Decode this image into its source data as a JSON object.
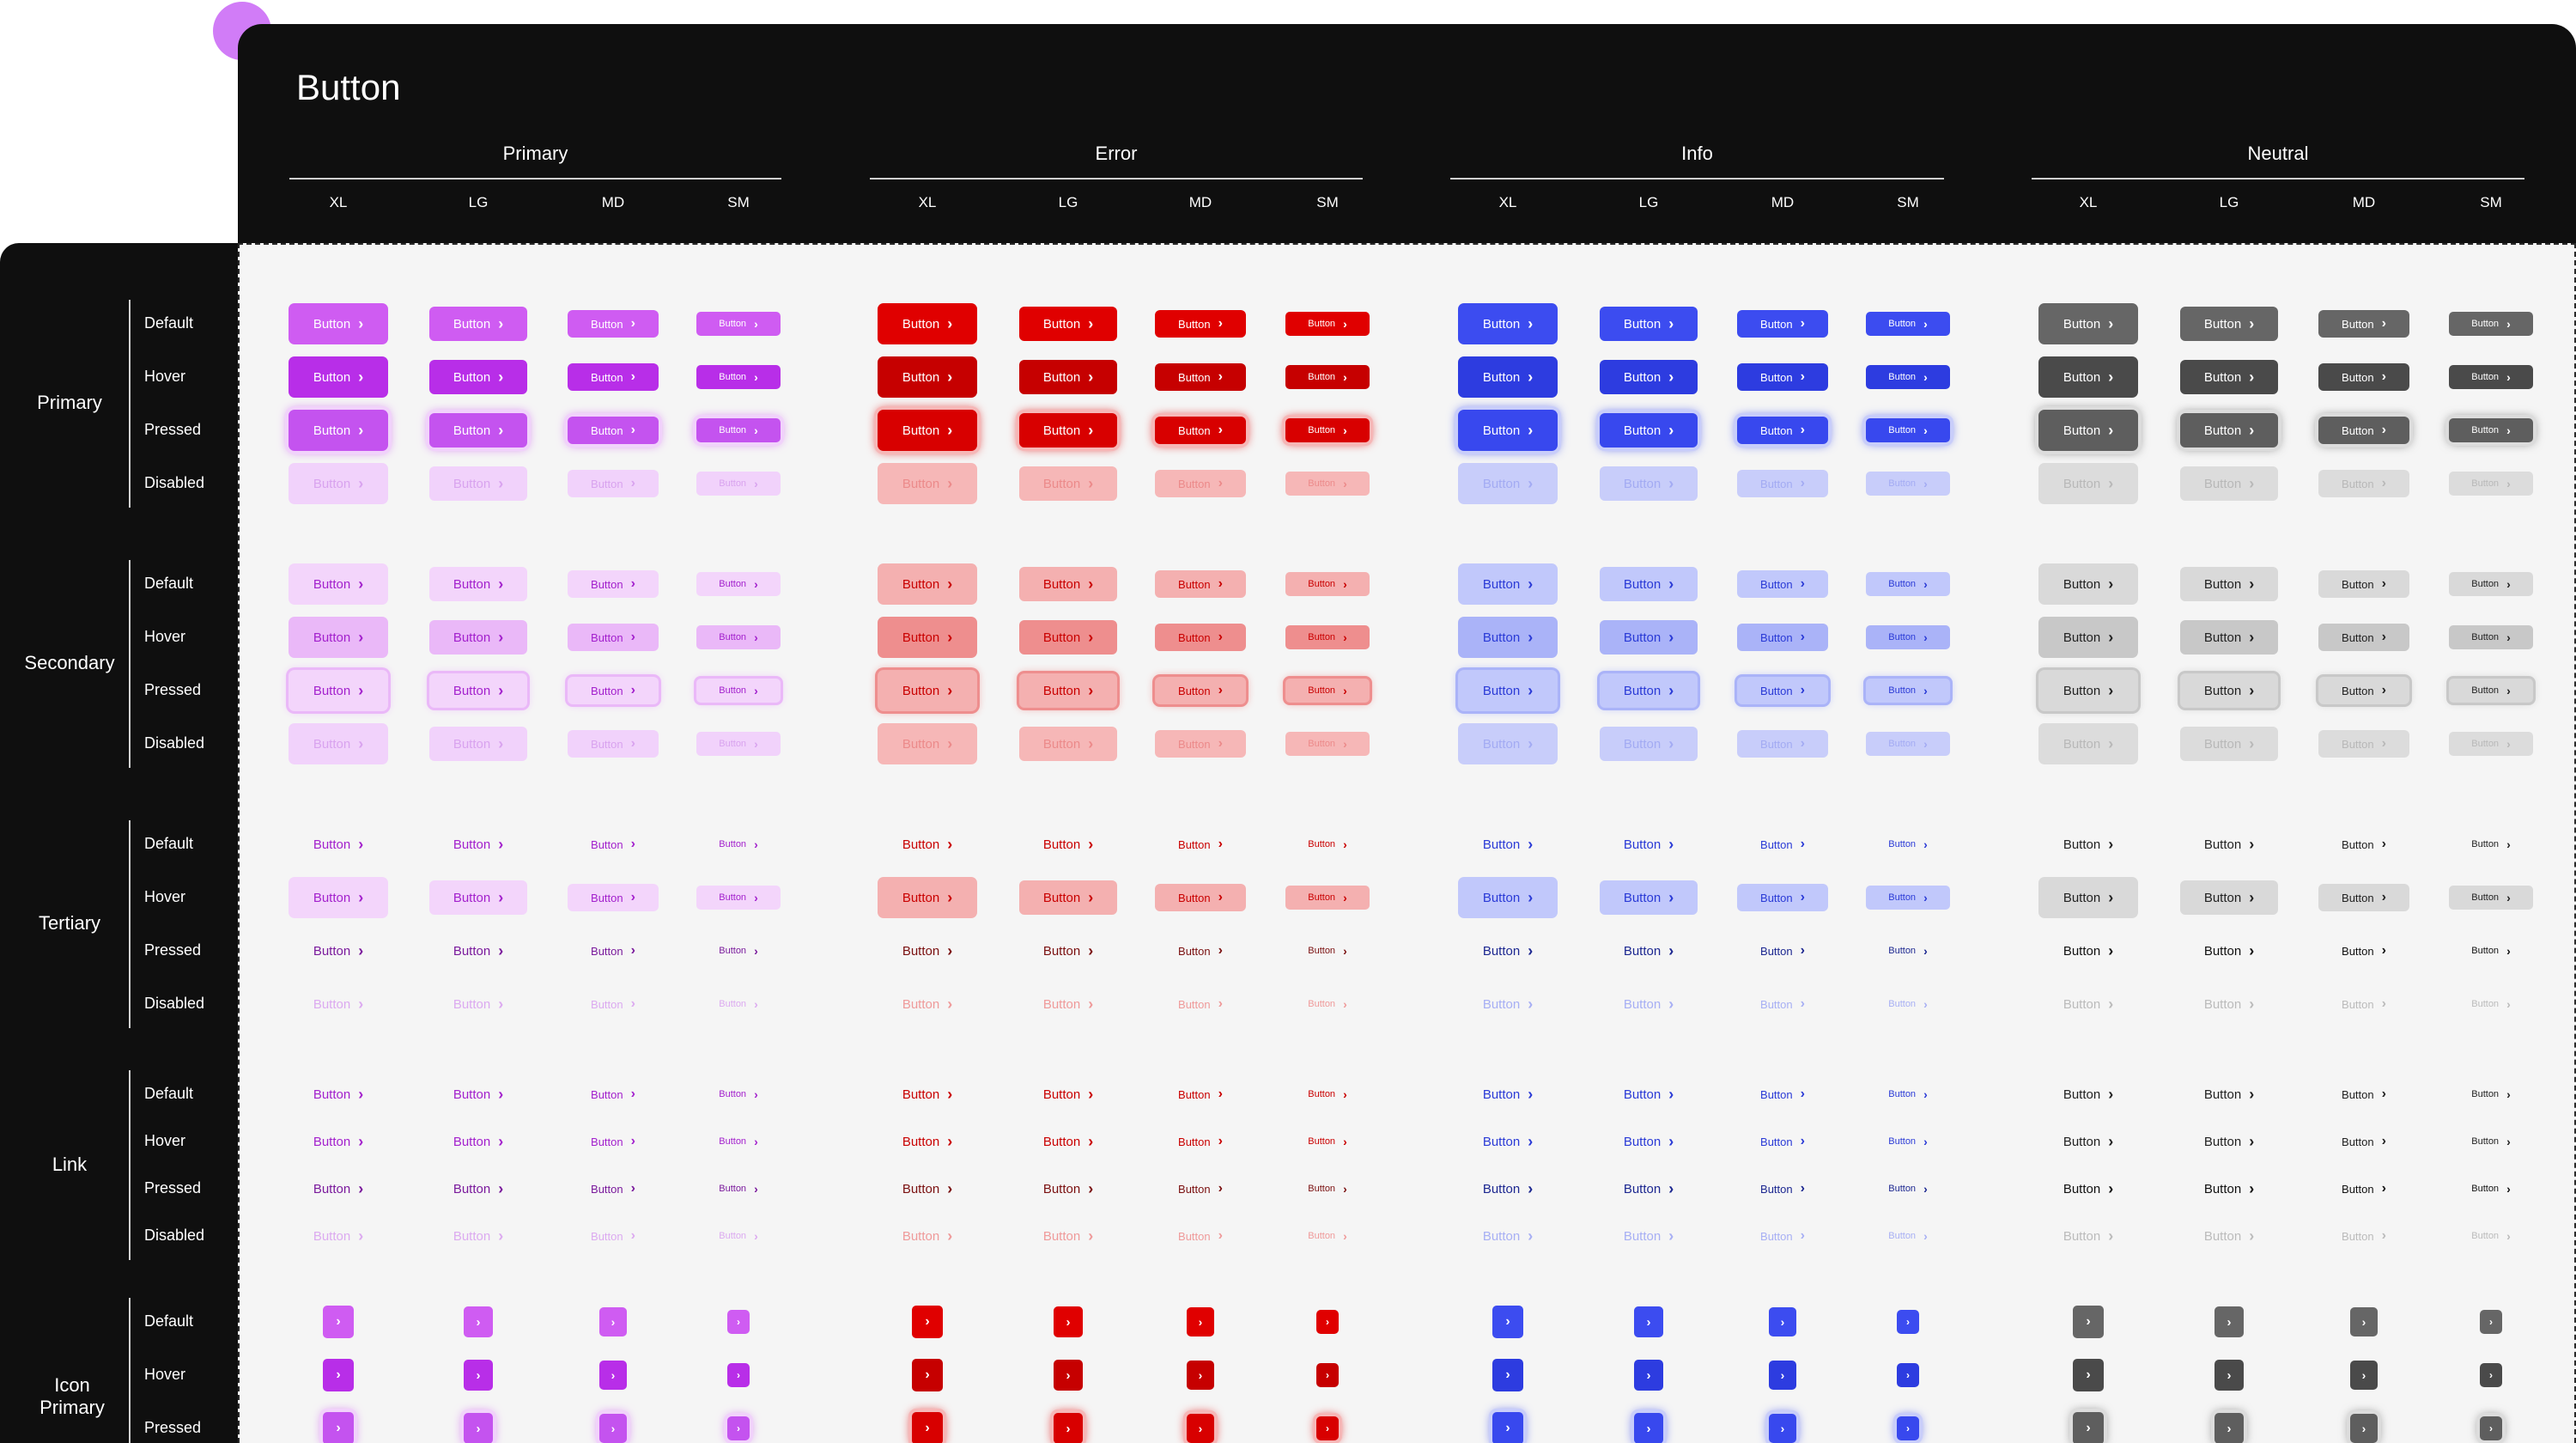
{
  "page": {
    "title": "Button"
  },
  "groups": [
    {
      "label": "Primary",
      "key": "primary"
    },
    {
      "label": "Error",
      "key": "error"
    },
    {
      "label": "Info",
      "key": "info"
    },
    {
      "label": "Neutral",
      "key": "neutral"
    }
  ],
  "sizes": [
    "XL",
    "LG",
    "MD",
    "SM"
  ],
  "sections": [
    {
      "label": "Primary",
      "type": "primary",
      "states": [
        "Default",
        "Hover",
        "Pressed",
        "Disabled"
      ]
    },
    {
      "label": "Secondary",
      "type": "secondary",
      "states": [
        "Default",
        "Hover",
        "Pressed",
        "Disabled"
      ]
    },
    {
      "label": "Tertiary",
      "type": "tertiary",
      "states": [
        "Default",
        "Hover",
        "Pressed",
        "Disabled"
      ]
    },
    {
      "label": "Link",
      "type": "link",
      "states": [
        "Default",
        "Hover",
        "Pressed",
        "Disabled"
      ]
    },
    {
      "label": "Icon Primary",
      "type": "icon",
      "states": [
        "Default",
        "Hover",
        "Pressed"
      ]
    }
  ],
  "button_label": "Button",
  "icons": {
    "chevron": "chevron-right-icon"
  },
  "palette": {
    "primary": {
      "base": "#cf5cf2",
      "hover": "#b82ee8",
      "pressed": "#c453ef",
      "disabled": "#f1d2fb",
      "disabled_text": "#d9a3ef",
      "secondary": "#f3d5fb",
      "secondary_hover": "#eab8f8",
      "text": "#a321cd",
      "text_strong": "#7a1a9c",
      "text_disabled": "#dcaaf0"
    },
    "error": {
      "base": "#e00000",
      "hover": "#c60000",
      "pressed": "#d80000",
      "disabled": "#f6b7b7",
      "disabled_text": "#ec8a8a",
      "secondary": "#f4b0b0",
      "secondary_hover": "#ee8e8e",
      "text": "#c90000",
      "text_strong": "#7a1010",
      "text_disabled": "#ef9a9a"
    },
    "info": {
      "base": "#3c4cf0",
      "hover": "#2d3ce0",
      "pressed": "#3848ee",
      "disabled": "#c8cdfa",
      "disabled_text": "#a3abf3",
      "secondary": "#c1c8fb",
      "secondary_hover": "#aab3f8",
      "text": "#2a3ad6",
      "text_strong": "#1c2790",
      "text_disabled": "#a7aff4"
    },
    "neutral": {
      "base": "#666666",
      "hover": "#4a4a4a",
      "pressed": "#5e5e5e",
      "disabled": "#dcdcdc",
      "disabled_text": "#b8b8b8",
      "secondary": "#d9d9d9",
      "secondary_hover": "#c8c8c8",
      "text": "#222222",
      "text_strong": "#111111",
      "text_disabled": "#bbbbbb"
    }
  }
}
